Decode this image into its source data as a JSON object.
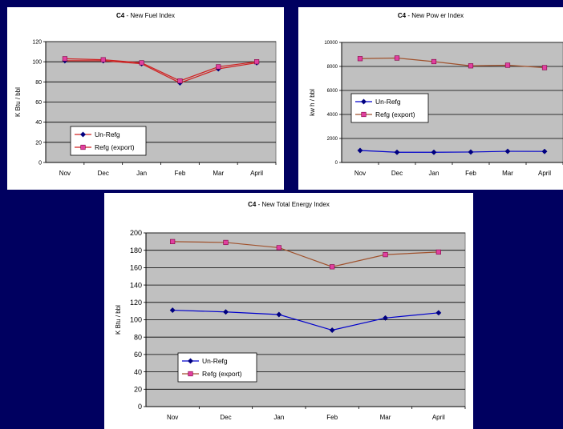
{
  "chart_data": [
    {
      "type": "line",
      "title_bold": "C4",
      "title": " - New  Fuel Index",
      "ylabel": "K Btu / bbl",
      "xlabel": "",
      "categories": [
        "Nov",
        "Dec",
        "Jan",
        "Feb",
        "Mar",
        "April"
      ],
      "ylim": [
        0,
        120
      ],
      "yticks": [
        0,
        20,
        40,
        60,
        80,
        100,
        120
      ],
      "grid": true,
      "legend": "inside-bottom-left",
      "series": [
        {
          "name": "Un-Refg",
          "values": [
            101,
            101,
            98,
            79,
            93,
            99
          ],
          "color": "#d02020",
          "marker": "diamond",
          "marker_color": "#000080"
        },
        {
          "name": "Refg (export)",
          "values": [
            103,
            102,
            99,
            81,
            95,
            100
          ],
          "color": "#d02020",
          "marker": "square",
          "marker_color": "#e040a0"
        }
      ]
    },
    {
      "type": "line",
      "title_bold": "C4",
      "title": " - New  Pow er Index",
      "ylabel": "kw h / bbl",
      "xlabel": "",
      "categories": [
        "Nov",
        "Dec",
        "Jan",
        "Feb",
        "Mar",
        "April"
      ],
      "ylim": [
        0,
        10000
      ],
      "yticks": [
        0,
        2000,
        4000,
        6000,
        8000,
        10000
      ],
      "grid": true,
      "legend": "inside-middle-left",
      "series": [
        {
          "name": "Un-Refg",
          "values": [
            1000,
            850,
            850,
            870,
            930,
            920
          ],
          "color": "#0000cc",
          "marker": "diamond",
          "marker_color": "#000080"
        },
        {
          "name": "Refg (export)",
          "values": [
            8650,
            8700,
            8400,
            8050,
            8100,
            7900
          ],
          "color": "#a0522d",
          "marker": "square",
          "marker_color": "#e040a0"
        }
      ]
    },
    {
      "type": "line",
      "title_bold": "C4",
      "title": " - New  Total Energy Index",
      "ylabel": "K Btu / bbl",
      "xlabel": "",
      "categories": [
        "Nov",
        "Dec",
        "Jan",
        "Feb",
        "Mar",
        "April"
      ],
      "ylim": [
        0,
        200
      ],
      "yticks": [
        0,
        20,
        40,
        60,
        80,
        100,
        120,
        140,
        160,
        180,
        200
      ],
      "grid": true,
      "legend": "inside-bottom-left",
      "series": [
        {
          "name": "Un-Refg",
          "values": [
            111,
            109,
            106,
            88,
            102,
            108
          ],
          "color": "#0000cc",
          "marker": "diamond",
          "marker_color": "#000080"
        },
        {
          "name": "Refg (export)",
          "values": [
            190,
            189,
            183,
            161,
            175,
            178
          ],
          "color": "#a0522d",
          "marker": "square",
          "marker_color": "#e040a0"
        }
      ]
    }
  ]
}
